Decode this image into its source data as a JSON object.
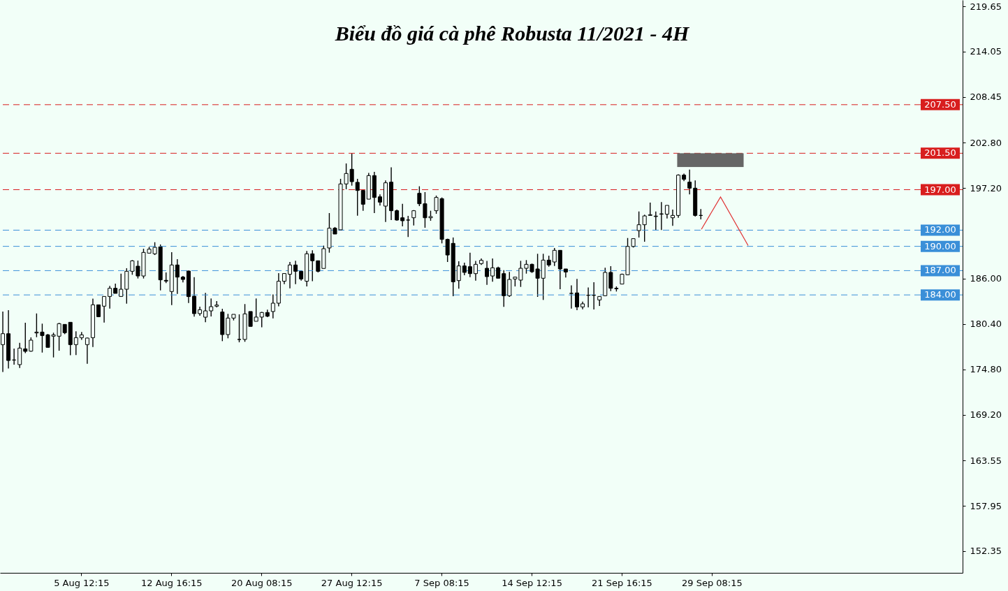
{
  "chart_data": {
    "type": "candlestick",
    "title": "Biểu đồ giá cà phê Robusta 11/2021 - 4H",
    "categories": [
      null,
      null,
      null,
      null,
      null,
      null,
      null,
      null,
      null,
      null,
      null,
      null,
      null,
      null,
      "5 Aug 12:15",
      null,
      null,
      null,
      null,
      null,
      null,
      null,
      null,
      null,
      null,
      null,
      null,
      null,
      null,
      null,
      "12 Aug 16:15",
      null,
      null,
      null,
      null,
      null,
      null,
      null,
      null,
      null,
      null,
      null,
      null,
      null,
      null,
      null,
      "20 Aug 08:15",
      null,
      null,
      null,
      null,
      null,
      null,
      null,
      null,
      null,
      null,
      null,
      null,
      null,
      null,
      null,
      "27 Aug 12:15",
      null,
      null,
      null,
      null,
      null,
      null,
      null,
      null,
      null,
      null,
      null,
      null,
      null,
      null,
      null,
      "7 Sep 08:15",
      null,
      null,
      null,
      null,
      null,
      null,
      null,
      null,
      null,
      null,
      null,
      null,
      null,
      null,
      null,
      "14 Sep 12:15",
      null,
      null,
      null,
      null,
      null,
      null,
      null,
      null,
      null,
      null,
      null,
      null,
      null,
      null,
      null,
      "21 Sep 16:15",
      null,
      null,
      null,
      null,
      null,
      null,
      null,
      null,
      null,
      null,
      null,
      null,
      null,
      null,
      null,
      "29 Sep 08:15",
      null,
      null,
      null,
      null,
      null,
      null,
      null,
      null,
      null,
      null,
      null,
      null,
      null,
      null,
      null,
      null,
      null,
      null,
      null,
      null,
      null,
      null,
      null,
      null,
      null,
      null,
      null,
      null,
      null,
      null,
      null,
      null,
      null,
      null,
      null,
      null,
      null,
      null,
      null,
      null,
      null,
      null,
      null,
      null
    ],
    "ohlc": [
      [
        177.86,
        181.94,
        174.47,
        179.21
      ],
      [
        179.21,
        182.12,
        174.9,
        175.9
      ],
      [
        175.96,
        177.37,
        175.39,
        175.96
      ],
      [
        175.39,
        178.09,
        174.98,
        177.43
      ],
      [
        177.34,
        180.56,
        176.8,
        177.03
      ],
      [
        177.05,
        178.75,
        176.99,
        178.41
      ],
      [
        179.3,
        181.71,
        178.78,
        179.41
      ],
      [
        179.41,
        180.45,
        176.88,
        178.98
      ],
      [
        179.07,
        179.18,
        177.52,
        177.52
      ],
      [
        178.9,
        179.33,
        176.28,
        179.07
      ],
      [
        178.9,
        180.54,
        177.11,
        180.45
      ],
      [
        180.36,
        180.39,
        179.15,
        179.33
      ],
      [
        180.62,
        180.62,
        176.54,
        177.86
      ],
      [
        177.86,
        179.5,
        176.57,
        178.72
      ],
      [
        178.72,
        179.41,
        178.44,
        179.07
      ],
      [
        177.86,
        178.72,
        175.5,
        178.67
      ],
      [
        178.72,
        183.53,
        177.57,
        182.78
      ],
      [
        182.78,
        182.78,
        181.25,
        181.31
      ],
      [
        182.61,
        183.81,
        180.59,
        183.81
      ],
      [
        183.81,
        185.11,
        182.32,
        184.82
      ],
      [
        184.82,
        185.4,
        184.19,
        184.19
      ],
      [
        183.81,
        186.63,
        183.76,
        184.7
      ],
      [
        184.7,
        187.3,
        182.92,
        186.92
      ],
      [
        186.92,
        188.3,
        186.49,
        188.21
      ],
      [
        187.55,
        188.24,
        186.03,
        186.34
      ],
      [
        186.34,
        189.71,
        186.03,
        189.25
      ],
      [
        189.16,
        189.94,
        189.13,
        189.65
      ],
      [
        189.08,
        190.51,
        188.93,
        189.88
      ],
      [
        189.94,
        190.23,
        184.56,
        185.86
      ],
      [
        185.8,
        186.78,
        185.45,
        185.71
      ],
      [
        184.42,
        189.28,
        182.75,
        187.7
      ],
      [
        187.7,
        188.42,
        184.13,
        186.2
      ],
      [
        186.2,
        186.34,
        185.54,
        185.91
      ],
      [
        186.95,
        187.01,
        183.01,
        183.79
      ],
      [
        183.84,
        186.2,
        181.31,
        181.69
      ],
      [
        181.69,
        182.55,
        181.43,
        182.17
      ],
      [
        181.25,
        184.25,
        180.62,
        182.03
      ],
      [
        182.03,
        183.56,
        181.34,
        182.55
      ],
      [
        182.61,
        183.24,
        182.46,
        182.75
      ],
      [
        181.89,
        182.29,
        178.29,
        179.1
      ],
      [
        179.1,
        181.66,
        178.64,
        181.14
      ],
      [
        181.14,
        181.6,
        180.85,
        181.6
      ],
      [
        178.5,
        181.6,
        178.15,
        178.5
      ],
      [
        178.5,
        182.87,
        178.21,
        181.66
      ],
      [
        181.95,
        181.95,
        180.11,
        180.11
      ],
      [
        180.74,
        183.56,
        180.74,
        181.26
      ],
      [
        181.26,
        181.89,
        180.0,
        181.83
      ],
      [
        181.83,
        182.18,
        181.26,
        181.37
      ],
      [
        181.95,
        184.05,
        181.11,
        182.98
      ],
      [
        182.98,
        186.69,
        182.58,
        185.69
      ],
      [
        185.69,
        186.64,
        185.34,
        186.64
      ],
      [
        186.55,
        188.07,
        184.82,
        187.7
      ],
      [
        187.7,
        188.22,
        185.34,
        186.92
      ],
      [
        186.92,
        186.92,
        185.77,
        185.97
      ],
      [
        185.69,
        189.43,
        185.06,
        189.08
      ],
      [
        189.08,
        189.51,
        185.69,
        188.22
      ],
      [
        188.22,
        188.22,
        186.78,
        186.92
      ],
      [
        187.27,
        190.09,
        187.27,
        189.71
      ],
      [
        189.8,
        194.11,
        189.22,
        192.24
      ],
      [
        192.24,
        192.39,
        191.52,
        191.52
      ],
      [
        192.04,
        198.34,
        192.04,
        197.71
      ],
      [
        197.71,
        200.24,
        197.05,
        199.0
      ],
      [
        199.52,
        201.5,
        197.5,
        197.99
      ],
      [
        197.91,
        198.34,
        193.79,
        196.9
      ],
      [
        196.9,
        196.99,
        194.4,
        195.2
      ],
      [
        195.83,
        199.08,
        195.83,
        198.74
      ],
      [
        198.74,
        199.2,
        194.11,
        196.04
      ],
      [
        196.12,
        196.41,
        195.03,
        195.46
      ],
      [
        194.97,
        198.14,
        193.02,
        197.85
      ],
      [
        197.93,
        199.77,
        193.25,
        194.4
      ],
      [
        194.4,
        194.54,
        193.16,
        193.25
      ],
      [
        193.53,
        195.26,
        192.47,
        193.16
      ],
      [
        193.25,
        193.76,
        191.15,
        193.25
      ],
      [
        193.53,
        194.48,
        192.58,
        194.4
      ],
      [
        196.55,
        197.42,
        194.97,
        195.26
      ],
      [
        195.26,
        196.7,
        192.3,
        193.53
      ],
      [
        193.53,
        194.4,
        193.16,
        193.68
      ],
      [
        194.4,
        196.27,
        194.02,
        196.04
      ],
      [
        195.89,
        196.04,
        190.37,
        190.86
      ],
      [
        190.86,
        190.95,
        188.07,
        188.93
      ],
      [
        190.37,
        191.09,
        183.84,
        185.62
      ],
      [
        185.77,
        188.16,
        184.76,
        187.58
      ],
      [
        187.58,
        187.98,
        186.43,
        186.78
      ],
      [
        187.49,
        189.22,
        186.2,
        186.63
      ],
      [
        186.63,
        188.21,
        185.77,
        187.78
      ],
      [
        187.87,
        188.5,
        187.7,
        188.27
      ],
      [
        187.29,
        188.21,
        185.25,
        186.26
      ],
      [
        186.34,
        188.5,
        185.63,
        187.35
      ],
      [
        187.35,
        187.49,
        186.06,
        186.06
      ],
      [
        186.63,
        187.06,
        182.52,
        183.9
      ],
      [
        183.9,
        186.83,
        183.76,
        185.91
      ],
      [
        185.97,
        186.26,
        185.05,
        186.2
      ],
      [
        185.83,
        188.21,
        184.99,
        187.29
      ],
      [
        187.29,
        188.3,
        186.63,
        187.78
      ],
      [
        187.78,
        187.87,
        186.72,
        186.86
      ],
      [
        187.21,
        189.08,
        183.76,
        186.06
      ],
      [
        186.06,
        189.08,
        183.38,
        188.3
      ],
      [
        188.3,
        188.85,
        187.49,
        187.7
      ],
      [
        188.07,
        189.8,
        187.58,
        189.51
      ],
      [
        189.51,
        189.51,
        184.7,
        187.21
      ],
      [
        187.21,
        187.21,
        186.14,
        186.83
      ],
      [
        184.19,
        185.19,
        182.32,
        184.19
      ],
      [
        184.25,
        185.97,
        182.12,
        182.52
      ],
      [
        182.52,
        183.18,
        182.23,
        182.9
      ],
      [
        183.96,
        184.91,
        182.46,
        183.96
      ],
      [
        183.96,
        185.57,
        182.2,
        183.96
      ],
      [
        183.38,
        183.85,
        182.64,
        183.81
      ],
      [
        183.9,
        187.35,
        183.84,
        186.78
      ],
      [
        186.78,
        187.55,
        184.47,
        184.82
      ],
      [
        184.82,
        185.05,
        184.42,
        184.76
      ],
      [
        185.34,
        186.63,
        185.34,
        186.55
      ],
      [
        186.49,
        191.03,
        186.43,
        189.99
      ],
      [
        189.99,
        190.95,
        189.85,
        190.95
      ],
      [
        191.95,
        194.31,
        191.09,
        192.67
      ],
      [
        192.67,
        193.91,
        190.57,
        193.76
      ],
      [
        193.82,
        195.4,
        193.82,
        193.91
      ],
      [
        193.68,
        194.31,
        192.01,
        193.74
      ],
      [
        193.97,
        195.46,
        192.01,
        194.02
      ],
      [
        193.97,
        195.06,
        193.45,
        195.06
      ],
      [
        193.53,
        194.54,
        192.53,
        193.82
      ],
      [
        193.82,
        198.91,
        193.53,
        198.8
      ],
      [
        198.8,
        198.98,
        198.05,
        198.28
      ],
      [
        197.93,
        199.49,
        196.41,
        197.19
      ],
      [
        197.19,
        198.14,
        193.68,
        193.82
      ],
      [
        193.82,
        194.6,
        193.33,
        193.82
      ],
      null,
      null,
      null,
      null,
      null,
      null,
      null,
      null,
      null,
      null,
      null,
      null,
      null,
      null,
      null,
      null,
      null,
      null,
      null,
      null,
      null,
      null,
      null,
      null,
      null,
      null,
      null,
      null,
      null,
      null,
      null,
      null,
      null,
      null,
      null,
      null,
      null,
      null,
      null,
      null,
      null,
      null,
      null,
      null,
      null,
      null
    ],
    "ylim": [
      149.67,
      220.43
    ],
    "yticks": [
      219.65,
      214.05,
      {
        "value": 208.45,
        "label": "208.45"
      },
      {
        "value": 202.8,
        "label": "202.80"
      },
      {
        "value": 197.2,
        "label": "197.20"
      },
      {
        "value": 186.0,
        "label": "186.00"
      },
      {
        "value": 180.4,
        "label": "180.40"
      },
      {
        "value": 174.8,
        "label": "174.80"
      },
      {
        "value": 169.2,
        "label": "169.20"
      },
      163.55,
      157.95,
      152.35
    ],
    "ref_lines": [
      {
        "axis": "y",
        "value": 207.5,
        "label": "207.50",
        "color": "#d81e1e",
        "line_style": "dashed"
      },
      {
        "axis": "y",
        "value": 201.5,
        "label": "201.50",
        "color": "#d81e1e",
        "line_style": "dashed"
      },
      {
        "axis": "y",
        "value": 197.0,
        "label": "197.00",
        "color": "#d81e1e",
        "line_style": "dashed"
      },
      {
        "axis": "y",
        "value": 192.0,
        "label": "192.00",
        "color": "#3a8fd8",
        "line_style": "dashed"
      },
      {
        "axis": "y",
        "value": 190.0,
        "label": "190.00",
        "color": "#3a8fd8",
        "line_style": "dashed"
      },
      {
        "axis": "y",
        "value": 187.0,
        "label": "187.00",
        "color": "#3a8fd8",
        "line_style": "dashed"
      },
      {
        "axis": "y",
        "value": 184.0,
        "label": "184.00",
        "color": "#3a8fd8",
        "line_style": "dashed"
      }
    ]
  }
}
